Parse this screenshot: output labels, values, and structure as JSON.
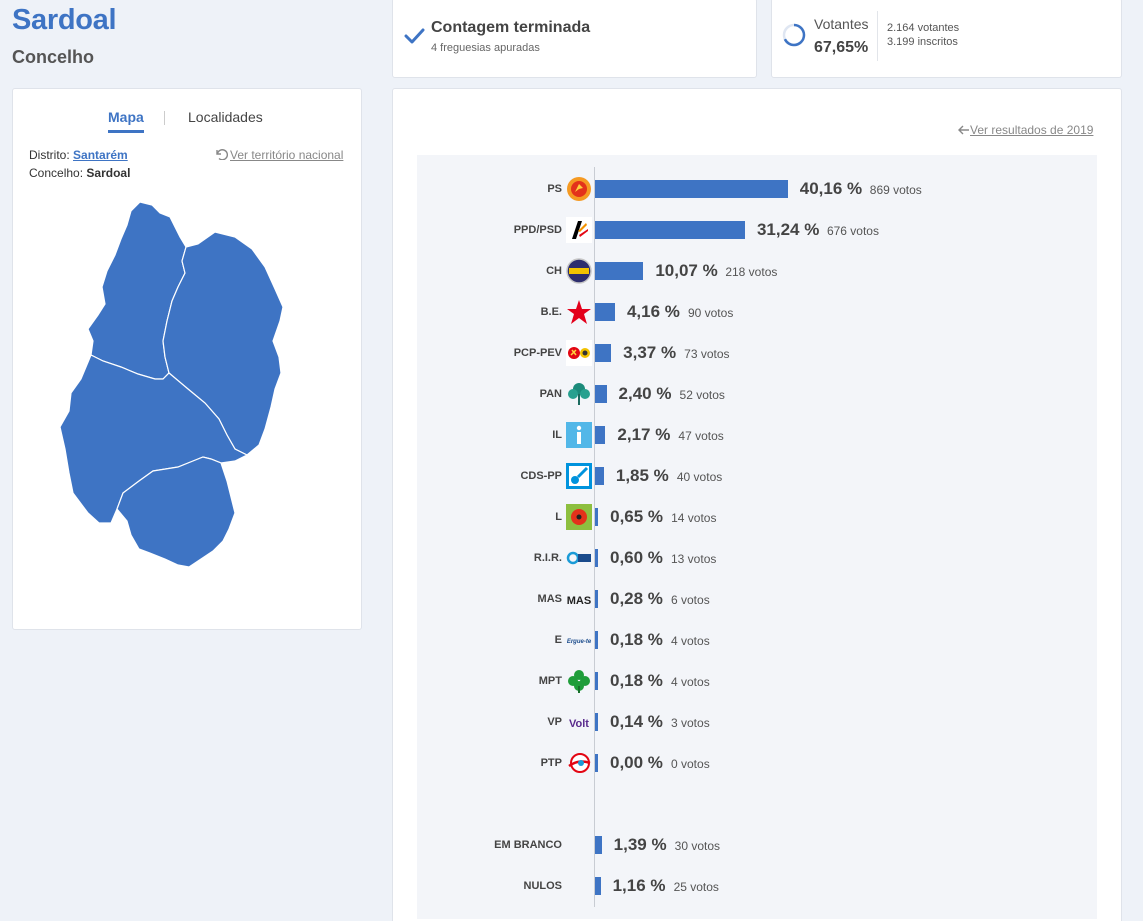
{
  "header": {
    "title": "Sardoal",
    "subtitle": "Concelho"
  },
  "status": {
    "title": "Contagem terminada",
    "subtitle": "4 freguesias apuradas",
    "color": "#3e74c4"
  },
  "turnout": {
    "label": "Votantes",
    "percent": "67,65%",
    "fraction": 0.6765,
    "votantes": "2.164 votantes",
    "inscritos": "3.199 inscritos"
  },
  "map_panel": {
    "tabs": [
      "Mapa",
      "Localidades"
    ],
    "active_tab": "Mapa",
    "distrito_label": "Distrito:",
    "distrito_value": "Santarém",
    "concelho_label": "Concelho:",
    "concelho_value": "Sardoal",
    "national_link": "Ver território nacional",
    "region_color": "#3e74c4"
  },
  "results": {
    "prev_link": "Ver resultados de 2019",
    "bar_color": "#3e74c4",
    "parties": [
      {
        "name": "PS",
        "percent_label": "40,16 %",
        "votes_label": "869 votos",
        "value": 40.16,
        "icon": "ps-logo-icon"
      },
      {
        "name": "PPD/PSD",
        "percent_label": "31,24 %",
        "votes_label": "676 votos",
        "value": 31.24,
        "icon": "psd-logo-icon"
      },
      {
        "name": "CH",
        "percent_label": "10,07 %",
        "votes_label": "218 votos",
        "value": 10.07,
        "icon": "chega-logo-icon"
      },
      {
        "name": "B.E.",
        "percent_label": "4,16 %",
        "votes_label": "90 votos",
        "value": 4.16,
        "icon": "be-star-icon"
      },
      {
        "name": "PCP-PEV",
        "percent_label": "3,37 %",
        "votes_label": "73 votos",
        "value": 3.37,
        "icon": "cdu-logo-icon"
      },
      {
        "name": "PAN",
        "percent_label": "2,40 %",
        "votes_label": "52 votos",
        "value": 2.4,
        "icon": "pan-tree-icon"
      },
      {
        "name": "IL",
        "percent_label": "2,17 %",
        "votes_label": "47 votos",
        "value": 2.17,
        "icon": "il-logo-icon"
      },
      {
        "name": "CDS-PP",
        "percent_label": "1,85 %",
        "votes_label": "40 votos",
        "value": 1.85,
        "icon": "cds-logo-icon"
      },
      {
        "name": "L",
        "percent_label": "0,65 %",
        "votes_label": "14 votos",
        "value": 0.65,
        "icon": "livre-poppy-icon"
      },
      {
        "name": "R.I.R.",
        "percent_label": "0,60 %",
        "votes_label": "13 votos",
        "value": 0.6,
        "icon": "rir-logo-icon"
      },
      {
        "name": "MAS",
        "percent_label": "0,28 %",
        "votes_label": "6 votos",
        "value": 0.28,
        "icon": "mas-logo-icon",
        "logo_text": "MAS"
      },
      {
        "name": "E",
        "percent_label": "0,18 %",
        "votes_label": "4 votos",
        "value": 0.18,
        "icon": "ergue-te-logo-icon",
        "logo_text": "Ergue-te"
      },
      {
        "name": "MPT",
        "percent_label": "0,18 %",
        "votes_label": "4 votos",
        "value": 0.18,
        "icon": "mpt-clover-icon"
      },
      {
        "name": "VP",
        "percent_label": "0,14 %",
        "votes_label": "3 votos",
        "value": 0.14,
        "icon": "volt-logo-icon",
        "logo_text": "Volt"
      },
      {
        "name": "PTP",
        "percent_label": "0,00 %",
        "votes_label": "0 votos",
        "value": 0.0,
        "icon": "ptp-logo-icon"
      }
    ],
    "others": [
      {
        "name": "EM BRANCO",
        "percent_label": "1,39 %",
        "votes_label": "30 votos",
        "value": 1.39
      },
      {
        "name": "NULOS",
        "percent_label": "1,16 %",
        "votes_label": "25 votos",
        "value": 1.16
      }
    ]
  }
}
